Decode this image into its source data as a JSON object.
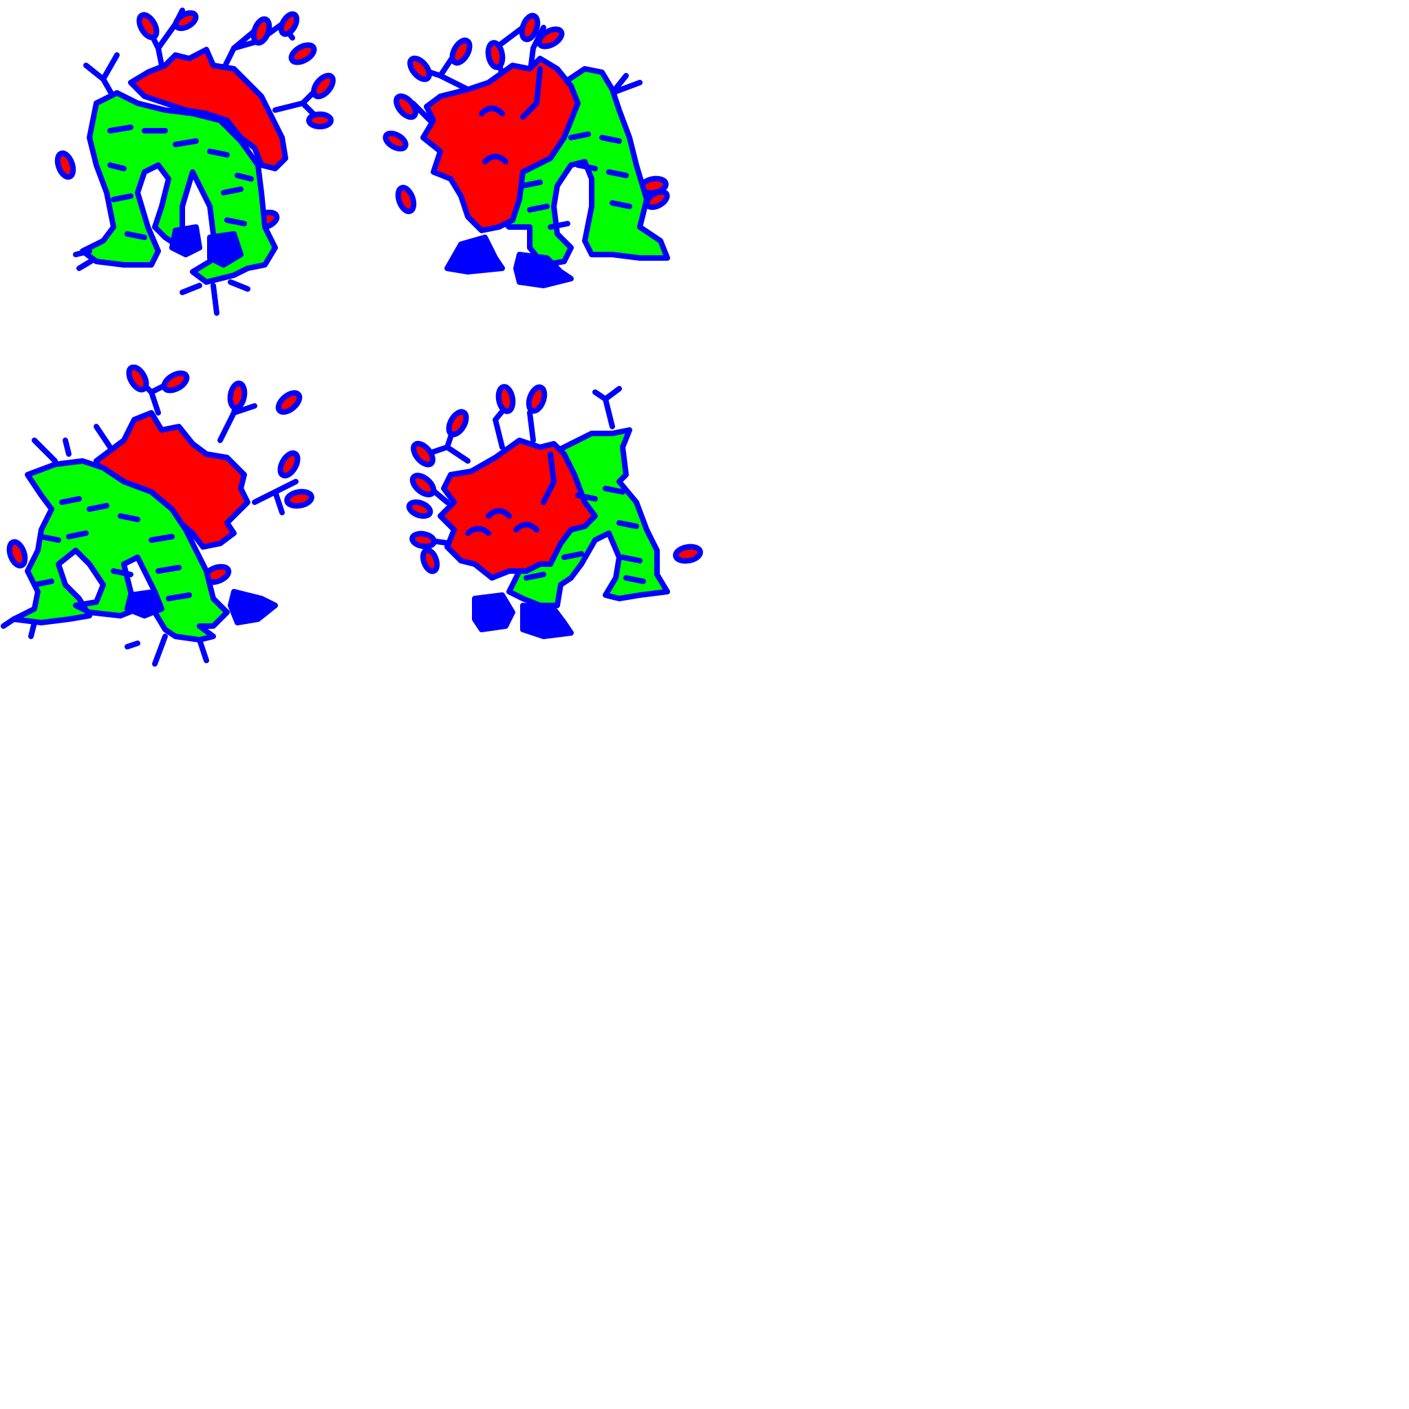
{
  "sprite_sheet": {
    "background": "#ffffff",
    "palette": {
      "body": "#00ff00",
      "mane": "#ff0000",
      "outline": "#0000ff",
      "leaf": "#ff0000",
      "hoof": "#0000ff"
    },
    "frames": [
      {
        "name": "front-right-walk-1",
        "facing": "right",
        "pose": 0
      },
      {
        "name": "back-left-walk-1",
        "facing": "away",
        "pose": 0
      },
      {
        "name": "front-left-walk-2",
        "facing": "left",
        "pose": 1
      },
      {
        "name": "back-right-walk-2",
        "facing": "away",
        "pose": 1
      }
    ]
  }
}
